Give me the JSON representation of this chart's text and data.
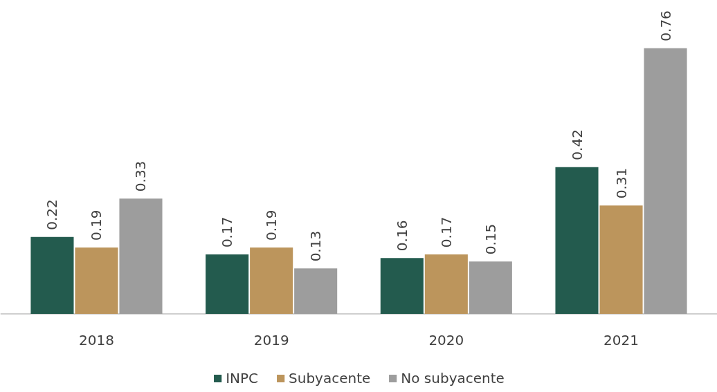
{
  "chart_data": {
    "type": "bar",
    "categories": [
      "2018",
      "2019",
      "2020",
      "2021"
    ],
    "series": [
      {
        "name": "INPC",
        "color": "#235b4e",
        "values": [
          0.22,
          0.17,
          0.16,
          0.42
        ]
      },
      {
        "name": "Subyacente",
        "color": "#bc955c",
        "values": [
          0.19,
          0.19,
          0.17,
          0.31
        ]
      },
      {
        "name": "No subyacente",
        "color": "#9d9d9d",
        "values": [
          0.33,
          0.13,
          0.15,
          0.76
        ]
      }
    ],
    "data_labels": true,
    "legend": "bottom",
    "grid": false
  }
}
